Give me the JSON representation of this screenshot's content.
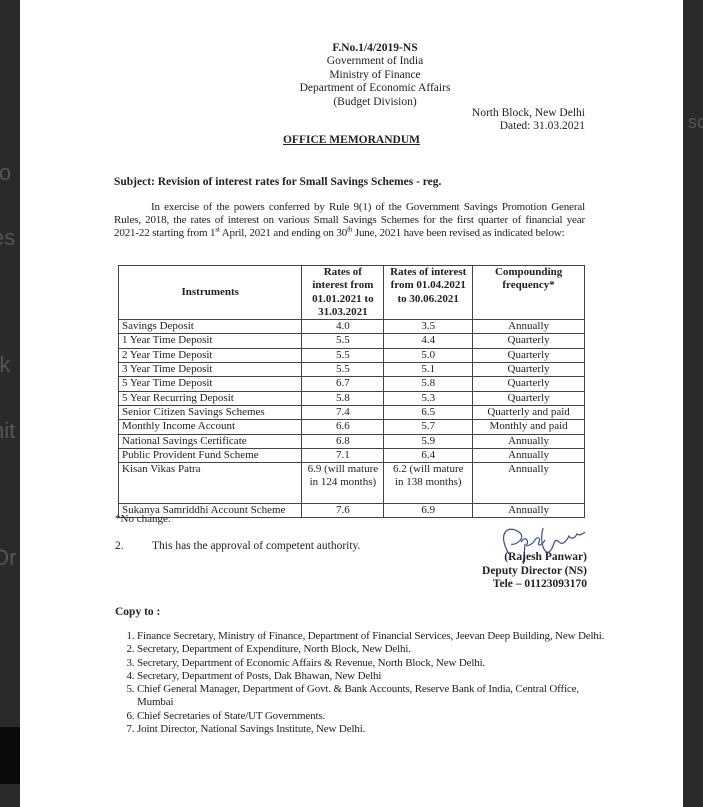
{
  "background_fragments": [
    "io",
    "es",
    "rk",
    "nit",
    "i",
    "Or",
    "sc"
  ],
  "header": {
    "file_no": "F.No.1/4/2019-NS",
    "lines": [
      "Government of India",
      "Ministry of Finance",
      "Department of Economic Affairs",
      "(Budget Division)"
    ],
    "place": "North Block, New Delhi",
    "date": "Dated: 31.03.2021"
  },
  "title": "OFFICE MEMORANDUM",
  "subject": "Subject: Revision of interest rates for Small Savings Schemes - reg.",
  "paragraph": {
    "part1": "In exercise of the powers conferred by Rule 9(1) of the Government Savings Promotion General Rules, 2018, the rates of interest on various Small Savings Schemes for the first quarter of financial year 2021-22 starting from 1",
    "sup1": "st",
    "part2": " April, 2021 and ending on 30",
    "sup2": "th",
    "part3": " June, 2021 have been revised as indicated below:"
  },
  "table": {
    "headers": [
      "Instruments",
      "Rates of interest from 01.01.2021 to 31.03.2021",
      "Rates of interest from 01.04.2021 to 30.06.2021",
      "Compounding frequency*"
    ],
    "rows": [
      [
        "Savings Deposit",
        "4.0",
        "3.5",
        "Annually"
      ],
      [
        "1 Year Time Deposit",
        "5.5",
        "4.4",
        "Quarterly"
      ],
      [
        "2 Year Time Deposit",
        "5.5",
        "5.0",
        "Quarterly"
      ],
      [
        "3 Year Time Deposit",
        "5.5",
        "5.1",
        "Quarterly"
      ],
      [
        "5 Year Time Deposit",
        "6.7",
        "5.8",
        "Quarterly"
      ],
      [
        "5 Year Recurring Deposit",
        "5.8",
        "5.3",
        "Quarterly"
      ],
      [
        "Senior Citizen Savings Schemes",
        "7.4",
        "6.5",
        "Quarterly and paid"
      ],
      [
        "Monthly Income Account",
        "6.6",
        "5.7",
        "Monthly and paid"
      ],
      [
        "National Savings Certificate",
        "6.8",
        "5.9",
        "Annually"
      ],
      [
        "Public Provident Fund Scheme",
        "7.1",
        "6.4",
        "Annually"
      ],
      [
        "Kisan Vikas Patra",
        "6.9 (will mature in 124 months)",
        "6.2 (will mature in 138 months)",
        "Annually"
      ],
      [
        "Sukanya Samriddhi Account Scheme",
        "7.6",
        "6.9",
        "Annually"
      ]
    ],
    "footnote": "*No change."
  },
  "para2": {
    "num": "2.",
    "text": "This has the approval of competent authority."
  },
  "signature": {
    "name": "(Rajesh Panwar)",
    "designation": "Deputy Director (NS)",
    "tele": "Tele – 01123093170"
  },
  "copy_to": {
    "label": "Copy to :",
    "items": [
      "Finance Secretary, Ministry of Finance, Department of Financial Services, Jeevan Deep Building, New Delhi.",
      "Secretary, Department of Expenditure, North Block, New Delhi.",
      "Secretary, Department of Economic Affairs &  Revenue, North Block, New Delhi.",
      "Secretary, Department of Posts, Dak Bhawan, New Delhi",
      "Chief General Manager, Department of Govt. & Bank Accounts, Reserve Bank of India, Central Office, Mumbai",
      "Chief Secretaries of State/UT Governments.",
      "Joint Director, National Savings Institute, New Delhi."
    ]
  },
  "colors": {
    "ink": "#222222",
    "signature_ink": "#3a4a9a",
    "backdrop": "#2a2a2a"
  }
}
